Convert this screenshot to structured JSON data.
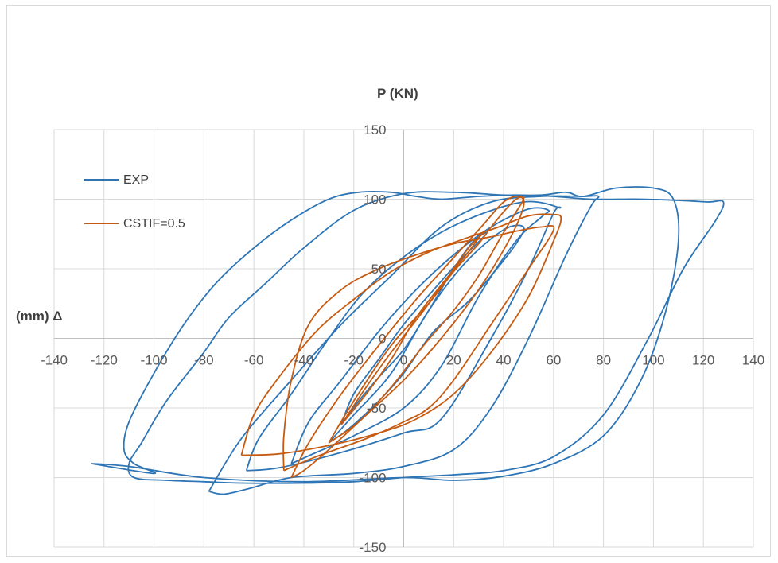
{
  "chart_data": {
    "type": "line",
    "xlabel": "(mm) Δ",
    "ylabel": "P (KN)",
    "xlim": [
      -140,
      140
    ],
    "ylim": [
      -150,
      150
    ],
    "x_ticks": [
      -140,
      -120,
      -100,
      -80,
      -60,
      -40,
      -20,
      0,
      20,
      40,
      60,
      80,
      100,
      120,
      140
    ],
    "y_ticks": [
      -150,
      -100,
      -50,
      0,
      50,
      100,
      150
    ],
    "grid": true,
    "legend_position": "top-left",
    "series": [
      {
        "name": "EXP",
        "color": "#2e75b6",
        "loops": [
          [
            [
              -25,
              -62
            ],
            [
              -18,
              -45
            ],
            [
              -10,
              -28
            ],
            [
              0,
              -8
            ],
            [
              10,
              20
            ],
            [
              20,
              50
            ],
            [
              28,
              70
            ],
            [
              33,
              75
            ],
            [
              22,
              55
            ],
            [
              12,
              35
            ],
            [
              0,
              10
            ],
            [
              -10,
              -15
            ],
            [
              -20,
              -40
            ],
            [
              -25,
              -62
            ]
          ],
          [
            [
              -30,
              -75
            ],
            [
              -20,
              -55
            ],
            [
              -5,
              -25
            ],
            [
              10,
              20
            ],
            [
              25,
              55
            ],
            [
              40,
              78
            ],
            [
              48,
              80
            ],
            [
              45,
              68
            ],
            [
              35,
              45
            ],
            [
              25,
              25
            ],
            [
              12,
              5
            ],
            [
              0,
              -25
            ],
            [
              -10,
              -45
            ],
            [
              -22,
              -65
            ],
            [
              -30,
              -75
            ]
          ],
          [
            [
              -45,
              -90
            ],
            [
              -35,
              -82
            ],
            [
              -20,
              -70
            ],
            [
              0,
              -50
            ],
            [
              15,
              -20
            ],
            [
              30,
              30
            ],
            [
              45,
              70
            ],
            [
              55,
              87
            ],
            [
              58,
              92
            ],
            [
              50,
              93
            ],
            [
              35,
              80
            ],
            [
              20,
              60
            ],
            [
              5,
              35
            ],
            [
              -10,
              5
            ],
            [
              -25,
              -30
            ],
            [
              -38,
              -60
            ],
            [
              -45,
              -90
            ]
          ],
          [
            [
              -63,
              -95
            ],
            [
              -50,
              -93
            ],
            [
              -25,
              -82
            ],
            [
              0,
              -68
            ],
            [
              15,
              -58
            ],
            [
              35,
              0
            ],
            [
              50,
              50
            ],
            [
              60,
              90
            ],
            [
              62,
              94
            ],
            [
              48,
              98
            ],
            [
              25,
              85
            ],
            [
              5,
              65
            ],
            [
              -15,
              35
            ],
            [
              -30,
              0
            ],
            [
              -45,
              -40
            ],
            [
              -58,
              -72
            ],
            [
              -63,
              -95
            ]
          ],
          [
            [
              -78,
              -110
            ],
            [
              -72,
              -112
            ],
            [
              -62,
              -108
            ],
            [
              -45,
              -100
            ],
            [
              -20,
              -97
            ],
            [
              0,
              -92
            ],
            [
              20,
              -80
            ],
            [
              35,
              -50
            ],
            [
              50,
              0
            ],
            [
              65,
              60
            ],
            [
              75,
              95
            ],
            [
              78,
              102
            ],
            [
              72,
              102
            ],
            [
              55,
              102
            ],
            [
              35,
              98
            ],
            [
              15,
              80
            ],
            [
              -5,
              45
            ],
            [
              -25,
              10
            ],
            [
              -45,
              -30
            ],
            [
              -65,
              -72
            ],
            [
              -78,
              -110
            ]
          ],
          [
            [
              -125,
              -90
            ],
            [
              -110,
              -92
            ],
            [
              -80,
              -100
            ],
            [
              -40,
              -103
            ],
            [
              0,
              -100
            ],
            [
              20,
              -102
            ],
            [
              40,
              -99
            ],
            [
              60,
              -90
            ],
            [
              80,
              -70
            ],
            [
              95,
              -30
            ],
            [
              105,
              20
            ],
            [
              110,
              70
            ],
            [
              108,
              100
            ],
            [
              100,
              108
            ],
            [
              85,
              108
            ],
            [
              72,
              102
            ],
            [
              65,
              105
            ],
            [
              55,
              103
            ],
            [
              40,
              103
            ],
            [
              20,
              105
            ],
            [
              0,
              104
            ],
            [
              -20,
              92
            ],
            [
              -40,
              65
            ],
            [
              -55,
              40
            ],
            [
              -70,
              15
            ],
            [
              -80,
              -10
            ],
            [
              -95,
              -45
            ],
            [
              -105,
              -75
            ],
            [
              -110,
              -90
            ],
            [
              -108,
              -100
            ],
            [
              -95,
              -102
            ],
            [
              -80,
              -103
            ],
            [
              -65,
              -104
            ],
            [
              -40,
              -104
            ],
            [
              -20,
              -103
            ],
            [
              0,
              -100
            ],
            [
              20,
              -98
            ],
            [
              40,
              -95
            ],
            [
              60,
              -85
            ],
            [
              80,
              -55
            ],
            [
              98,
              0
            ],
            [
              112,
              50
            ],
            [
              125,
              85
            ],
            [
              128,
              98
            ],
            [
              122,
              98
            ],
            [
              112,
              99
            ],
            [
              95,
              100
            ],
            [
              75,
              100
            ],
            [
              60,
              102
            ],
            [
              45,
              103
            ],
            [
              30,
              102
            ],
            [
              15,
              100
            ],
            [
              5,
              102
            ],
            [
              -5,
              105
            ],
            [
              -18,
              105
            ],
            [
              -30,
              100
            ],
            [
              -45,
              85
            ],
            [
              -60,
              65
            ],
            [
              -75,
              40
            ],
            [
              -88,
              10
            ],
            [
              -100,
              -25
            ],
            [
              -110,
              -60
            ],
            [
              -112,
              -80
            ],
            [
              -108,
              -90
            ],
            [
              -100,
              -97
            ],
            [
              -125,
              -90
            ]
          ]
        ]
      },
      {
        "name": "CSTIF=0.5",
        "color": "#c55a11",
        "loops": [
          [
            [
              -25,
              -62
            ],
            [
              -15,
              -40
            ],
            [
              -5,
              -15
            ],
            [
              5,
              15
            ],
            [
              18,
              45
            ],
            [
              25,
              60
            ],
            [
              30,
              72
            ],
            [
              32,
              76
            ],
            [
              26,
              65
            ],
            [
              18,
              45
            ],
            [
              8,
              20
            ],
            [
              -5,
              -10
            ],
            [
              -15,
              -35
            ],
            [
              -25,
              -62
            ]
          ],
          [
            [
              -30,
              -75
            ],
            [
              -20,
              -45
            ],
            [
              -5,
              -5
            ],
            [
              10,
              25
            ],
            [
              20,
              48
            ],
            [
              30,
              68
            ],
            [
              35,
              80
            ],
            [
              42,
              95
            ],
            [
              46,
              101
            ],
            [
              48,
              100
            ],
            [
              44,
              88
            ],
            [
              38,
              70
            ],
            [
              30,
              45
            ],
            [
              20,
              20
            ],
            [
              8,
              -5
            ],
            [
              -5,
              -35
            ],
            [
              -18,
              -60
            ],
            [
              -30,
              -75
            ]
          ],
          [
            [
              -45,
              -100
            ],
            [
              -40,
              -95
            ],
            [
              -30,
              -80
            ],
            [
              -15,
              -55
            ],
            [
              0,
              -30
            ],
            [
              15,
              0
            ],
            [
              30,
              35
            ],
            [
              42,
              70
            ],
            [
              48,
              95
            ],
            [
              46,
              102
            ],
            [
              40,
              98
            ],
            [
              32,
              82
            ],
            [
              20,
              58
            ],
            [
              5,
              28
            ],
            [
              -10,
              -5
            ],
            [
              -25,
              -40
            ],
            [
              -38,
              -75
            ],
            [
              -45,
              -100
            ]
          ],
          [
            [
              -65,
              -84
            ],
            [
              -50,
              -83
            ],
            [
              -30,
              -77
            ],
            [
              -10,
              -68
            ],
            [
              5,
              -58
            ],
            [
              20,
              -40
            ],
            [
              35,
              -10
            ],
            [
              50,
              30
            ],
            [
              60,
              70
            ],
            [
              63,
              86
            ],
            [
              60,
              89
            ],
            [
              50,
              88
            ],
            [
              38,
              80
            ],
            [
              25,
              72
            ],
            [
              10,
              62
            ],
            [
              -5,
              48
            ],
            [
              -20,
              28
            ],
            [
              -35,
              5
            ],
            [
              -50,
              -28
            ],
            [
              -60,
              -55
            ],
            [
              -65,
              -84
            ]
          ],
          [
            [
              -48,
              -95
            ],
            [
              -35,
              -85
            ],
            [
              -15,
              -72
            ],
            [
              0,
              -60
            ],
            [
              10,
              -50
            ],
            [
              20,
              -30
            ],
            [
              35,
              10
            ],
            [
              50,
              50
            ],
            [
              60,
              78
            ],
            [
              55,
              80
            ],
            [
              45,
              77
            ],
            [
              35,
              73
            ],
            [
              20,
              68
            ],
            [
              5,
              60
            ],
            [
              -10,
              50
            ],
            [
              -25,
              35
            ],
            [
              -38,
              10
            ],
            [
              -45,
              -30
            ],
            [
              -48,
              -70
            ],
            [
              -48,
              -95
            ]
          ]
        ]
      }
    ]
  }
}
